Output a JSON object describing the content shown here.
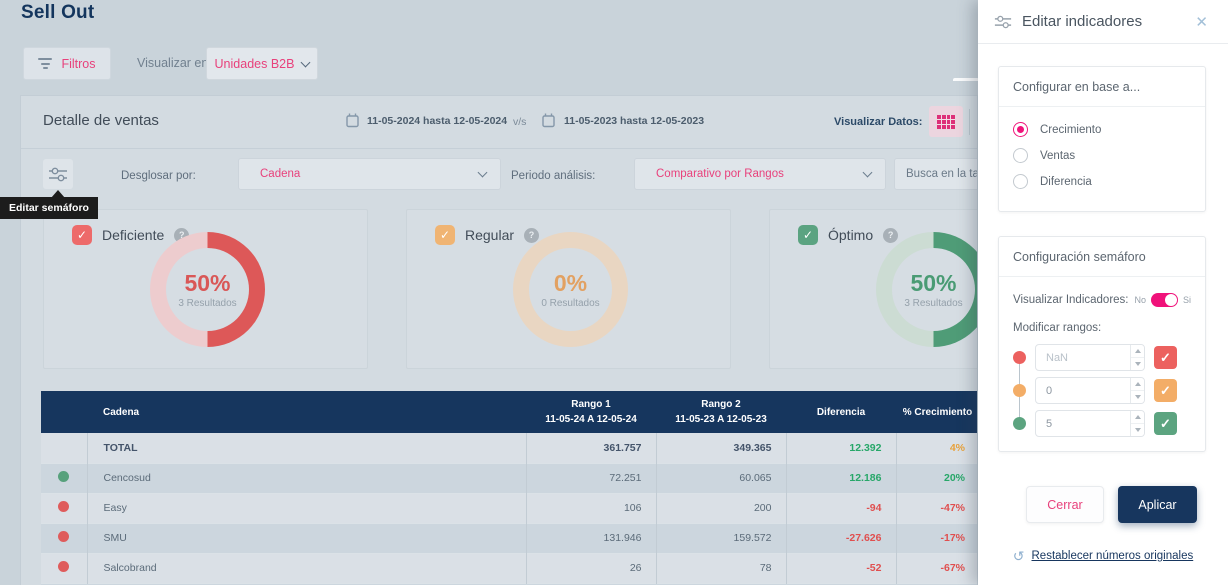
{
  "page": {
    "title": "Sell Out"
  },
  "toolbar": {
    "filters_label": "Filtros",
    "visualize_in_label": "Visualizar en:",
    "unit_selected": "Unidades B2B"
  },
  "panel": {
    "title": "Detalle de ventas",
    "date_range_1": "11-05-2024 hasta 12-05-2024",
    "vs_label": "v/s",
    "date_range_2": "11-05-2023 hasta 12-05-2023",
    "visualize_data_label": "Visualizar Datos:",
    "tooltip_label": "Editar semáforo",
    "breakdown_label": "Desglosar por:",
    "breakdown_value": "Cadena",
    "period_label": "Periodo análisis:",
    "period_value": "Comparativo por Rangos",
    "search_placeholder": "Busca en la tabla"
  },
  "indicators": [
    {
      "label": "Deficiente",
      "percent": "50%",
      "results": "3 Resultados",
      "value": 50,
      "color": "#dd5858",
      "track": "#edccce",
      "text_color": "#d95757",
      "box_color": "#ed6a6a"
    },
    {
      "label": "Regular",
      "percent": "0%",
      "results": "0 Resultados",
      "value": 0,
      "color": "#e8b47c",
      "track": "#e9d6c2",
      "text_color": "#e2a162",
      "box_color": "#f0b473"
    },
    {
      "label": "Óptimo",
      "percent": "50%",
      "results": "3 Resultados",
      "value": 50,
      "color": "#4f9c77",
      "track": "#ccdcd3",
      "text_color": "#4a9b74",
      "box_color": "#5ba381"
    }
  ],
  "table": {
    "columns": {
      "cadena": "Cadena",
      "rango1_title": "Rango 1",
      "rango1_sub": "11-05-24 A 12-05-24",
      "rango2_title": "Rango 2",
      "rango2_sub": "11-05-23 A 12-05-23",
      "diferencia": "Diferencia",
      "crecimiento": "% Crecimiento"
    },
    "rows": [
      {
        "total": true,
        "dot": null,
        "name": "TOTAL",
        "r1": "361.757",
        "r2": "349.365",
        "diff": "12.392",
        "diff_color": "positive",
        "growth": "4%",
        "growth_color": "warning"
      },
      {
        "total": false,
        "dot": "green",
        "name": "Cencosud",
        "r1": "72.251",
        "r2": "60.065",
        "diff": "12.186",
        "diff_color": "positive",
        "growth": "20%",
        "growth_color": "positive"
      },
      {
        "total": false,
        "dot": "red",
        "name": "Easy",
        "r1": "106",
        "r2": "200",
        "diff": "-94",
        "diff_color": "negative",
        "growth": "-47%",
        "growth_color": "negative"
      },
      {
        "total": false,
        "dot": "red",
        "name": "SMU",
        "r1": "131.946",
        "r2": "159.572",
        "diff": "-27.626",
        "diff_color": "negative",
        "growth": "-17%",
        "growth_color": "negative"
      },
      {
        "total": false,
        "dot": "red",
        "name": "Salcobrand",
        "r1": "26",
        "r2": "78",
        "diff": "-52",
        "diff_color": "negative",
        "growth": "-67%",
        "growth_color": "negative"
      }
    ]
  },
  "side_panel": {
    "title": "Editar indicadores",
    "config_section": {
      "title": "Configurar en base a...",
      "options": [
        {
          "label": "Crecimiento",
          "selected": true
        },
        {
          "label": "Ventas",
          "selected": false
        },
        {
          "label": "Diferencia",
          "selected": false
        }
      ]
    },
    "semaphore_section": {
      "title": "Configuración semáforo",
      "visualize_label": "Visualizar Indicadores:",
      "toggle_off": "No",
      "toggle_on": "Si",
      "toggle_state": "Si",
      "ranges_label": "Modificar rangos:",
      "ranges": [
        {
          "value": "NaN",
          "muted": true,
          "color": "#ec615f"
        },
        {
          "value": "0",
          "muted": false,
          "color": "#f3ad67"
        },
        {
          "value": "5",
          "muted": false,
          "color": "#5ca480"
        }
      ]
    },
    "close_button": "Cerrar",
    "apply_button": "Aplicar",
    "reset_label": "Restablecer números originales"
  },
  "icons": {
    "close": "✕",
    "reset": "↺",
    "check": "✓",
    "help": "?"
  },
  "colors": {
    "navy": "#17365e",
    "pink": "#e8417c",
    "bright_pink": "#f0127a",
    "green": "#57a17c",
    "red": "#df5c5c",
    "positive": "#27a769",
    "negative": "#e04f4f",
    "warning": "#e8a23c"
  }
}
